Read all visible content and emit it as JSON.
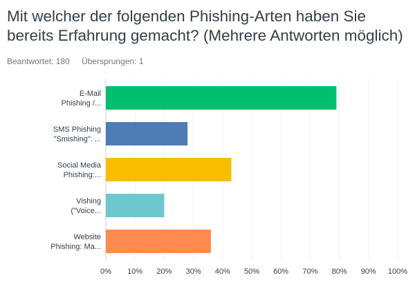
{
  "survey": {
    "question": "Mit welcher der folgenden Phishing-Arten haben Sie bereits Erfahrung gemacht? (Mehrere Antworten möglich)",
    "answered_label": "Beantwortet: 180",
    "skipped_label": "Übersprungen: 1"
  },
  "chart_data": {
    "type": "bar",
    "orientation": "horizontal",
    "title": "",
    "xlabel": "",
    "ylabel": "",
    "categories": [
      [
        "E-Mail",
        "Phishing /..."
      ],
      [
        "SMS Phishing",
        "\"Smishing\": ..."
      ],
      [
        "Social Media",
        "Phishing:..."
      ],
      [
        "Vishing",
        "(\"Voice..."
      ],
      [
        "Website",
        "Phishing: Ma..."
      ]
    ],
    "values": [
      79,
      28,
      43,
      20,
      36
    ],
    "colors": [
      "#00bf6f",
      "#507cb6",
      "#f9be00",
      "#6bc8cd",
      "#ff8b4f"
    ],
    "xlim": [
      0,
      100
    ],
    "ticks": [
      "0%",
      "10%",
      "20%",
      "30%",
      "40%",
      "50%",
      "60%",
      "70%",
      "80%",
      "90%",
      "100%"
    ],
    "grid": true,
    "legend": "none"
  }
}
